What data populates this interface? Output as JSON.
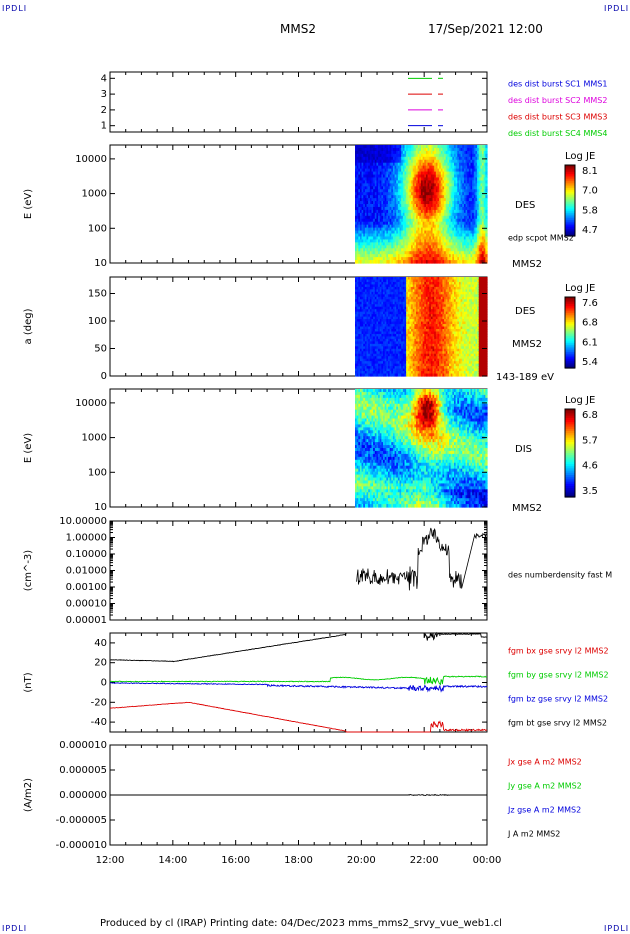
{
  "corners": {
    "label": "IPDLI"
  },
  "header": {
    "spacecraft": "MMS2",
    "datetime": "17/Sep/2021 12:00"
  },
  "footer": {
    "text": "Produced by cl (IRAP)   Printing date: 04/Dec/2023   mms_mms2_srvy_vue_web1.cl"
  },
  "colors": {
    "c1": "#0000dd",
    "c2": "#dd00dd",
    "c3": "#dd0000",
    "c4": "#00cc00",
    "black": "#000000"
  },
  "chart_data": [
    {
      "id": "panel1",
      "type": "line",
      "yticks": [
        "1",
        "2",
        "3",
        "4"
      ],
      "ylim": [
        0.6,
        4.4
      ],
      "legend": [
        {
          "text": "des dist burst SC1 MMS1",
          "color": "#0000dd"
        },
        {
          "text": "des dist burst SC2 MMS2",
          "color": "#dd00dd"
        },
        {
          "text": "des dist burst SC3 MMS3",
          "color": "#dd0000"
        },
        {
          "text": "des dist burst SC4 MMS4",
          "color": "#00cc00"
        }
      ]
    },
    {
      "id": "panel2",
      "type": "heatmap",
      "ylabel": "E (eV)",
      "yticks": [
        "10",
        "100",
        "1000",
        "10000"
      ],
      "yscale": "log",
      "instrument": "DES",
      "side_label": "edp scpot MMS2",
      "bottom_label": "MMS2",
      "colorbar": {
        "title": "Log JE",
        "ticks": [
          "8.1",
          "7.0",
          "5.8",
          "4.7"
        ]
      }
    },
    {
      "id": "panel3",
      "type": "heatmap",
      "ylabel": "a (deg)",
      "yticks": [
        "0",
        "50",
        "100",
        "150"
      ],
      "ylim": [
        0,
        180
      ],
      "instrument": "DES",
      "side_label": "MMS2",
      "bottom_label": "143-189 eV",
      "colorbar": {
        "title": "Log JE",
        "ticks": [
          "7.6",
          "6.8",
          "6.1",
          "5.4"
        ]
      }
    },
    {
      "id": "panel4",
      "type": "heatmap",
      "ylabel": "E (eV)",
      "yticks": [
        "10",
        "100",
        "1000",
        "10000"
      ],
      "yscale": "log",
      "instrument": "DIS",
      "bottom_label": "MMS2",
      "colorbar": {
        "title": "Log JE",
        "ticks": [
          "6.8",
          "5.7",
          "4.6",
          "3.5"
        ]
      }
    },
    {
      "id": "panel5",
      "type": "line",
      "ylabel": "(cm^-3)",
      "yscale": "log",
      "yticks": [
        "0.00001",
        "0.00010",
        "0.00100",
        "0.01000",
        "0.10000",
        "1.00000",
        "10.00000"
      ],
      "legend": [
        {
          "text": "des numberdensity fast M",
          "color": "#000000"
        }
      ]
    },
    {
      "id": "panel6",
      "type": "line",
      "ylabel": "(nT)",
      "yticks": [
        "-40",
        "-20",
        "0",
        "20",
        "40"
      ],
      "ylim": [
        -50,
        50
      ],
      "legend": [
        {
          "text": "fgm bx gse srvy l2 MMS2",
          "color": "#dd0000"
        },
        {
          "text": "fgm by gse srvy l2 MMS2",
          "color": "#00cc00"
        },
        {
          "text": "fgm bz gse srvy l2 MMS2",
          "color": "#0000dd"
        },
        {
          "text": "fgm bt gse srvy l2 MMS2",
          "color": "#000000"
        }
      ]
    },
    {
      "id": "panel7",
      "type": "line",
      "ylabel": "(A/m2)",
      "yticks": [
        "-0.000010",
        "-0.000005",
        "0.000000",
        "0.000005",
        "0.000010"
      ],
      "ylim": [
        -1e-05,
        1e-05
      ],
      "legend": [
        {
          "text": "Jx gse A m2 MMS2",
          "color": "#dd0000"
        },
        {
          "text": "Jy gse A m2 MMS2",
          "color": "#00cc00"
        },
        {
          "text": "Jz gse A m2 MMS2",
          "color": "#0000dd"
        },
        {
          "text": "J A m2 MMS2",
          "color": "#000000"
        }
      ]
    }
  ],
  "xaxis": {
    "ticks": [
      "12:00",
      "14:00",
      "16:00",
      "18:00",
      "20:00",
      "22:00",
      "00:00"
    ],
    "range_hours": [
      12,
      24
    ]
  }
}
